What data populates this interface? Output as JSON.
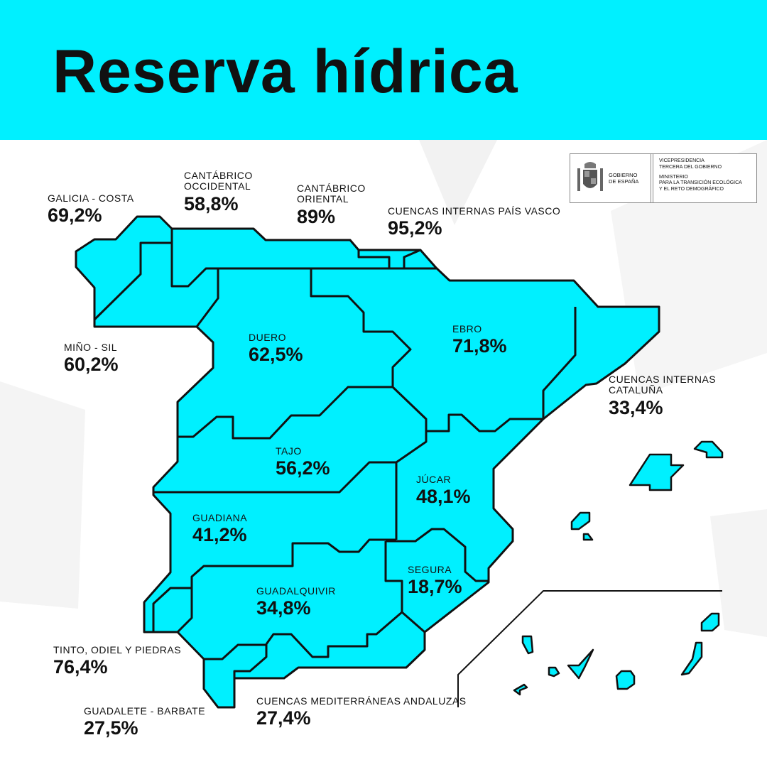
{
  "title": "Reserva hídrica",
  "colors": {
    "header": "#00f0ff",
    "basin_fill": "#00f0ff",
    "border": "#111111"
  },
  "logo": {
    "left": [
      "GOBIERNO",
      "DE ESPAÑA"
    ],
    "right_top": [
      "VICEPRESIDENCIA",
      "TERCERA DEL GOBIERNO"
    ],
    "right_bottom": [
      "MINISTERIO",
      "PARA LA TRANSICIÓN ECOLÓGICA",
      "Y EL RETO DEMOGRÁFICO"
    ]
  },
  "basins": [
    {
      "name": "GALICIA - COSTA",
      "value": "69,2%"
    },
    {
      "name": "CANTÁBRICO OCCIDENTAL",
      "value": "58,8%"
    },
    {
      "name": "CANTÁBRICO ORIENTAL",
      "value": "89%"
    },
    {
      "name": "CUENCAS INTERNAS PAÍS VASCO",
      "value": "95,2%"
    },
    {
      "name": "MIÑO - SIL",
      "value": "60,2%"
    },
    {
      "name": "DUERO",
      "value": "62,5%"
    },
    {
      "name": "EBRO",
      "value": "71,8%"
    },
    {
      "name": "CUENCAS INTERNAS CATALUÑA",
      "value": "33,4%"
    },
    {
      "name": "TAJO",
      "value": "56,2%"
    },
    {
      "name": "JÚCAR",
      "value": "48,1%"
    },
    {
      "name": "GUADIANA",
      "value": "41,2%"
    },
    {
      "name": "SEGURA",
      "value": "18,7%"
    },
    {
      "name": "GUADALQUIVIR",
      "value": "34,8%"
    },
    {
      "name": "TINTO, ODIEL Y PIEDRAS",
      "value": "76,4%"
    },
    {
      "name": "GUADALETE - BARBATE",
      "value": "27,5%"
    },
    {
      "name": "CUENCAS MEDITERRÁNEAS ANDALUZAS",
      "value": "27,4%"
    }
  ]
}
